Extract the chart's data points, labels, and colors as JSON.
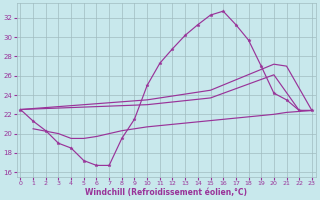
{
  "xlabel": "Windchill (Refroidissement éolien,°C)",
  "xlim": [
    -0.3,
    23.3
  ],
  "ylim": [
    15.5,
    33.5
  ],
  "xticks": [
    0,
    1,
    2,
    3,
    4,
    5,
    6,
    7,
    8,
    9,
    10,
    11,
    12,
    13,
    14,
    15,
    16,
    17,
    18,
    19,
    20,
    21,
    22,
    23
  ],
  "yticks": [
    16,
    18,
    20,
    22,
    24,
    26,
    28,
    30,
    32
  ],
  "bg_color": "#c8e8ec",
  "grid_color": "#a0bcc0",
  "line_color": "#993399",
  "curve1_x": [
    0,
    1,
    2,
    3,
    4,
    5,
    6,
    7,
    8,
    9,
    10,
    11,
    12,
    13,
    14,
    15,
    16,
    17,
    18,
    19,
    20,
    21,
    22,
    23
  ],
  "curve1_y": [
    22.5,
    21.3,
    20.3,
    19.0,
    18.5,
    17.2,
    16.7,
    16.7,
    19.5,
    21.5,
    25.0,
    27.3,
    28.8,
    30.2,
    31.3,
    32.3,
    32.7,
    31.3,
    29.7,
    27.0,
    24.2,
    23.5,
    22.4,
    22.4
  ],
  "curve2_x": [
    0,
    10,
    15,
    20,
    21,
    23
  ],
  "curve2_y": [
    22.5,
    23.5,
    24.5,
    27.2,
    27.0,
    22.4
  ],
  "curve3_x": [
    0,
    10,
    15,
    20,
    22,
    23
  ],
  "curve3_y": [
    22.5,
    23.0,
    23.7,
    26.1,
    22.4,
    22.4
  ],
  "curve4_x": [
    1,
    3,
    4,
    5,
    6,
    7,
    8,
    9,
    10,
    20,
    21,
    22,
    23
  ],
  "curve4_y": [
    20.5,
    20.0,
    19.5,
    19.5,
    19.7,
    20.0,
    20.3,
    20.5,
    20.7,
    22.0,
    22.2,
    22.3,
    22.4
  ]
}
